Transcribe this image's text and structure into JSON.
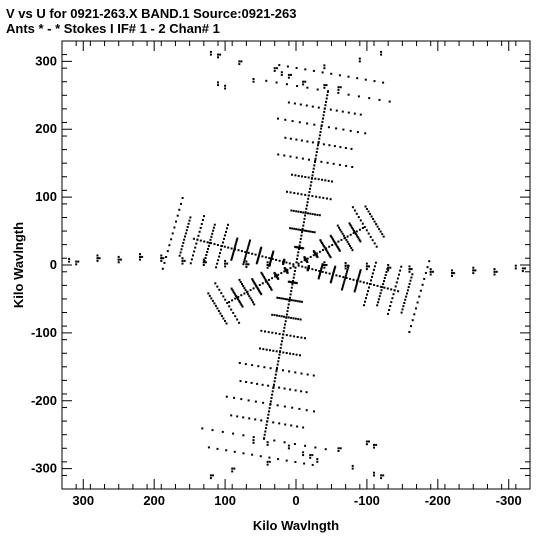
{
  "chart_data": {
    "type": "scatter",
    "title": "V vs U for 0921-263.X BAND.1   Source:0921-263",
    "subtitle": "Ants * - *    Stokes I   IF# 1 - 2  Chan# 1",
    "xlabel": "Kilo Wavlngth",
    "ylabel": "Kilo Wavlngth",
    "xlim": [
      330,
      -330
    ],
    "ylim": [
      -330,
      330
    ],
    "x_ticks": [
      300,
      200,
      100,
      0,
      -100,
      -200,
      -300
    ],
    "y_ticks": [
      300,
      200,
      100,
      0,
      -100,
      -200,
      -300
    ],
    "grid": false,
    "legend": "none",
    "marker_color": "#000000",
    "series": [
      {
        "arms": [
          {
            "angle_deg": 15,
            "length": 180,
            "spacing": 18,
            "fan": [
              0.25,
              0.18,
              0.3,
              0.22
            ]
          },
          {
            "angle_deg": 150,
            "length": 130,
            "spacing": 16,
            "fan": [
              0.2,
              0.26,
              0.16,
              0.3
            ]
          },
          {
            "angle_deg": 100,
            "length": 310,
            "spacing": 26,
            "fan": [
              0.3,
              0.22,
              0.34,
              0.26
            ]
          }
        ],
        "x": [
          310,
          280,
          250,
          220,
          190,
          160,
          130,
          100,
          70,
          40,
          -40,
          -70,
          -100,
          -130,
          -160,
          -190,
          -220,
          -250,
          -280,
          -320,
          110,
          80,
          30,
          10,
          -10,
          -40,
          -60,
          120,
          90,
          40,
          -20,
          -60,
          -110,
          -100,
          -120
        ],
        "y": [
          5,
          10,
          8,
          12,
          10,
          6,
          4,
          2,
          1,
          0,
          0,
          -1,
          -2,
          -4,
          -6,
          -10,
          -12,
          -8,
          -10,
          -5,
          310,
          300,
          290,
          280,
          270,
          265,
          262,
          -310,
          -300,
          -290,
          -280,
          -270,
          -265,
          -260,
          -310
        ]
      }
    ]
  }
}
